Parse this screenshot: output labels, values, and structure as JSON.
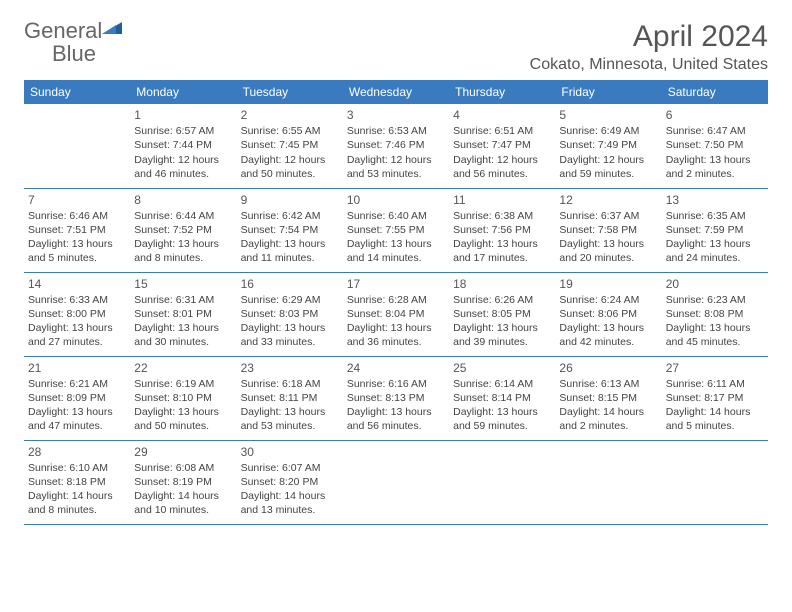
{
  "brand": {
    "part1": "General",
    "part2": "Blue"
  },
  "title": "April 2024",
  "location": "Cokato, Minnesota, United States",
  "colors": {
    "header_bg": "#3a7bbf",
    "header_text": "#ffffff",
    "border": "#3a7bbf",
    "body_text": "#444444",
    "title_text": "#555555"
  },
  "daysOfWeek": [
    "Sunday",
    "Monday",
    "Tuesday",
    "Wednesday",
    "Thursday",
    "Friday",
    "Saturday"
  ],
  "weeks": [
    [
      null,
      {
        "n": "1",
        "sr": "Sunrise: 6:57 AM",
        "ss": "Sunset: 7:44 PM",
        "dl": "Daylight: 12 hours and 46 minutes."
      },
      {
        "n": "2",
        "sr": "Sunrise: 6:55 AM",
        "ss": "Sunset: 7:45 PM",
        "dl": "Daylight: 12 hours and 50 minutes."
      },
      {
        "n": "3",
        "sr": "Sunrise: 6:53 AM",
        "ss": "Sunset: 7:46 PM",
        "dl": "Daylight: 12 hours and 53 minutes."
      },
      {
        "n": "4",
        "sr": "Sunrise: 6:51 AM",
        "ss": "Sunset: 7:47 PM",
        "dl": "Daylight: 12 hours and 56 minutes."
      },
      {
        "n": "5",
        "sr": "Sunrise: 6:49 AM",
        "ss": "Sunset: 7:49 PM",
        "dl": "Daylight: 12 hours and 59 minutes."
      },
      {
        "n": "6",
        "sr": "Sunrise: 6:47 AM",
        "ss": "Sunset: 7:50 PM",
        "dl": "Daylight: 13 hours and 2 minutes."
      }
    ],
    [
      {
        "n": "7",
        "sr": "Sunrise: 6:46 AM",
        "ss": "Sunset: 7:51 PM",
        "dl": "Daylight: 13 hours and 5 minutes."
      },
      {
        "n": "8",
        "sr": "Sunrise: 6:44 AM",
        "ss": "Sunset: 7:52 PM",
        "dl": "Daylight: 13 hours and 8 minutes."
      },
      {
        "n": "9",
        "sr": "Sunrise: 6:42 AM",
        "ss": "Sunset: 7:54 PM",
        "dl": "Daylight: 13 hours and 11 minutes."
      },
      {
        "n": "10",
        "sr": "Sunrise: 6:40 AM",
        "ss": "Sunset: 7:55 PM",
        "dl": "Daylight: 13 hours and 14 minutes."
      },
      {
        "n": "11",
        "sr": "Sunrise: 6:38 AM",
        "ss": "Sunset: 7:56 PM",
        "dl": "Daylight: 13 hours and 17 minutes."
      },
      {
        "n": "12",
        "sr": "Sunrise: 6:37 AM",
        "ss": "Sunset: 7:58 PM",
        "dl": "Daylight: 13 hours and 20 minutes."
      },
      {
        "n": "13",
        "sr": "Sunrise: 6:35 AM",
        "ss": "Sunset: 7:59 PM",
        "dl": "Daylight: 13 hours and 24 minutes."
      }
    ],
    [
      {
        "n": "14",
        "sr": "Sunrise: 6:33 AM",
        "ss": "Sunset: 8:00 PM",
        "dl": "Daylight: 13 hours and 27 minutes."
      },
      {
        "n": "15",
        "sr": "Sunrise: 6:31 AM",
        "ss": "Sunset: 8:01 PM",
        "dl": "Daylight: 13 hours and 30 minutes."
      },
      {
        "n": "16",
        "sr": "Sunrise: 6:29 AM",
        "ss": "Sunset: 8:03 PM",
        "dl": "Daylight: 13 hours and 33 minutes."
      },
      {
        "n": "17",
        "sr": "Sunrise: 6:28 AM",
        "ss": "Sunset: 8:04 PM",
        "dl": "Daylight: 13 hours and 36 minutes."
      },
      {
        "n": "18",
        "sr": "Sunrise: 6:26 AM",
        "ss": "Sunset: 8:05 PM",
        "dl": "Daylight: 13 hours and 39 minutes."
      },
      {
        "n": "19",
        "sr": "Sunrise: 6:24 AM",
        "ss": "Sunset: 8:06 PM",
        "dl": "Daylight: 13 hours and 42 minutes."
      },
      {
        "n": "20",
        "sr": "Sunrise: 6:23 AM",
        "ss": "Sunset: 8:08 PM",
        "dl": "Daylight: 13 hours and 45 minutes."
      }
    ],
    [
      {
        "n": "21",
        "sr": "Sunrise: 6:21 AM",
        "ss": "Sunset: 8:09 PM",
        "dl": "Daylight: 13 hours and 47 minutes."
      },
      {
        "n": "22",
        "sr": "Sunrise: 6:19 AM",
        "ss": "Sunset: 8:10 PM",
        "dl": "Daylight: 13 hours and 50 minutes."
      },
      {
        "n": "23",
        "sr": "Sunrise: 6:18 AM",
        "ss": "Sunset: 8:11 PM",
        "dl": "Daylight: 13 hours and 53 minutes."
      },
      {
        "n": "24",
        "sr": "Sunrise: 6:16 AM",
        "ss": "Sunset: 8:13 PM",
        "dl": "Daylight: 13 hours and 56 minutes."
      },
      {
        "n": "25",
        "sr": "Sunrise: 6:14 AM",
        "ss": "Sunset: 8:14 PM",
        "dl": "Daylight: 13 hours and 59 minutes."
      },
      {
        "n": "26",
        "sr": "Sunrise: 6:13 AM",
        "ss": "Sunset: 8:15 PM",
        "dl": "Daylight: 14 hours and 2 minutes."
      },
      {
        "n": "27",
        "sr": "Sunrise: 6:11 AM",
        "ss": "Sunset: 8:17 PM",
        "dl": "Daylight: 14 hours and 5 minutes."
      }
    ],
    [
      {
        "n": "28",
        "sr": "Sunrise: 6:10 AM",
        "ss": "Sunset: 8:18 PM",
        "dl": "Daylight: 14 hours and 8 minutes."
      },
      {
        "n": "29",
        "sr": "Sunrise: 6:08 AM",
        "ss": "Sunset: 8:19 PM",
        "dl": "Daylight: 14 hours and 10 minutes."
      },
      {
        "n": "30",
        "sr": "Sunrise: 6:07 AM",
        "ss": "Sunset: 8:20 PM",
        "dl": "Daylight: 14 hours and 13 minutes."
      },
      null,
      null,
      null,
      null
    ]
  ]
}
